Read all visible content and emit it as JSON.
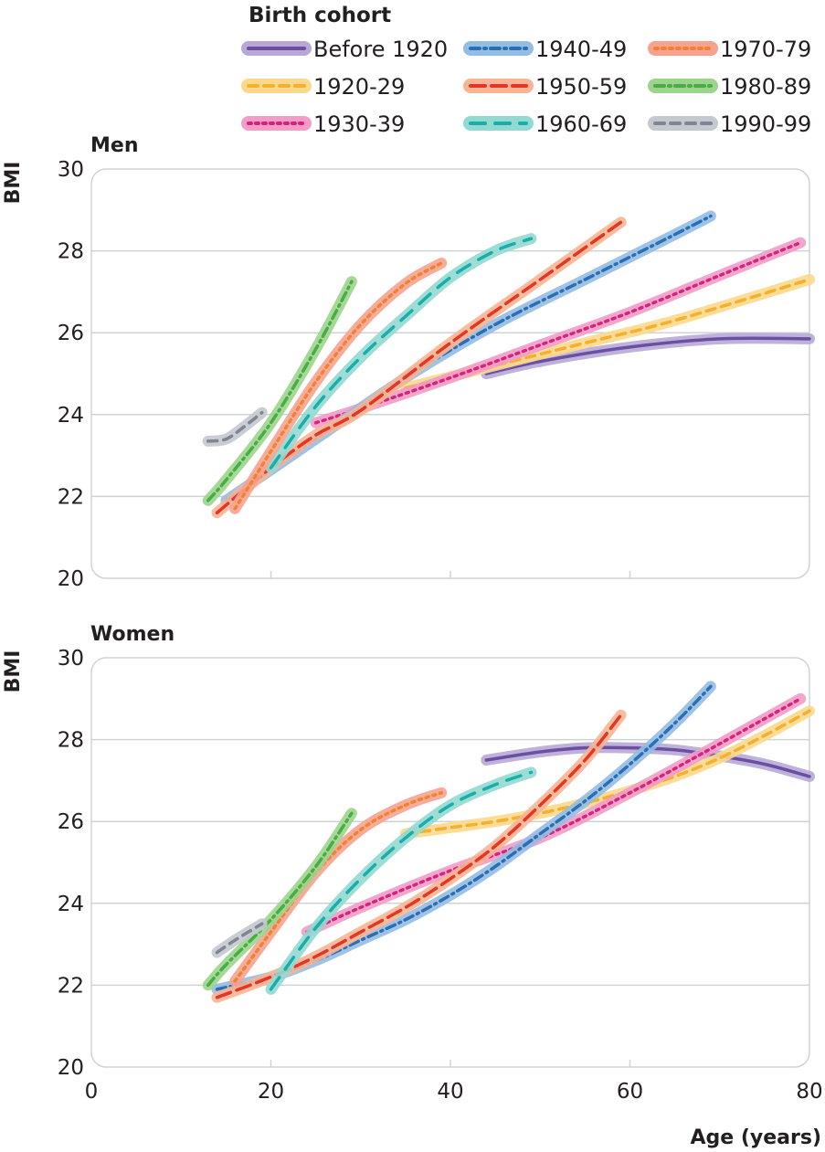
{
  "chart_data": {
    "type": "line",
    "legend_title": "Birth cohort",
    "legend_position": "top",
    "xlabel": "Age (years)",
    "ylabel": "BMI",
    "xlim": [
      0,
      80
    ],
    "ylim": [
      20,
      30
    ],
    "x_ticks": [
      "0",
      "20",
      "40",
      "60",
      "80"
    ],
    "y_ticks": [
      "20",
      "22",
      "24",
      "26",
      "28",
      "30"
    ],
    "grid": true,
    "series_styles": [
      {
        "name": "Before 1920",
        "color": "#6a4fa3",
        "band": "#b7a8d6",
        "dash": "solid"
      },
      {
        "name": "1920-29",
        "color": "#f6b02e",
        "band": "#fbd98c",
        "dash": "dash"
      },
      {
        "name": "1930-39",
        "color": "#d6247e",
        "band": "#f29cc7",
        "dash": "dot"
      },
      {
        "name": "1940-49",
        "color": "#2a6fb4",
        "band": "#93bde3",
        "dash": "dashdot"
      },
      {
        "name": "1950-59",
        "color": "#e53624",
        "band": "#f7b595",
        "dash": "longdash"
      },
      {
        "name": "1960-69",
        "color": "#1aaeaa",
        "band": "#92d9d2",
        "dash": "longdashgap"
      },
      {
        "name": "1970-79",
        "color": "#f2822f",
        "band": "#f6a28f",
        "dash": "dot"
      },
      {
        "name": "1980-89",
        "color": "#49ad46",
        "band": "#9cd48c",
        "dash": "dashdot"
      },
      {
        "name": "1990-99",
        "color": "#7e8791",
        "band": "#c4c8cf",
        "dash": "dash"
      }
    ],
    "panels": [
      {
        "title": "Men",
        "series": [
          {
            "name": "Before 1920",
            "x": [
              44,
              50,
              60,
              70,
              80
            ],
            "y": [
              25.0,
              25.3,
              25.65,
              25.85,
              25.85
            ]
          },
          {
            "name": "1920-29",
            "x": [
              35,
              45,
              55,
              65,
              80
            ],
            "y": [
              24.65,
              25.2,
              25.75,
              26.3,
              27.3
            ]
          },
          {
            "name": "1930-39",
            "x": [
              25,
              30,
              40,
              50,
              60,
              70,
              79
            ],
            "y": [
              23.8,
              24.15,
              24.9,
              25.7,
              26.5,
              27.4,
              28.2
            ]
          },
          {
            "name": "1940-49",
            "x": [
              15,
              25,
              35,
              45,
              55,
              65,
              69
            ],
            "y": [
              21.9,
              23.4,
              24.9,
              26.2,
              27.3,
              28.4,
              28.85
            ]
          },
          {
            "name": "1950-59",
            "x": [
              14,
              20,
              25,
              30,
              40,
              50,
              59
            ],
            "y": [
              21.6,
              22.7,
              23.5,
              24.1,
              25.75,
              27.3,
              28.7
            ]
          },
          {
            "name": "1960-69",
            "x": [
              20,
              25,
              30,
              35,
              40,
              45,
              49
            ],
            "y": [
              22.7,
              24.2,
              25.4,
              26.4,
              27.35,
              28.0,
              28.3
            ]
          },
          {
            "name": "1970-79",
            "x": [
              16,
              20,
              25,
              30,
              35,
              39
            ],
            "y": [
              21.7,
              23.1,
              24.8,
              26.2,
              27.2,
              27.7
            ]
          },
          {
            "name": "1980-89",
            "x": [
              13,
              15,
              20,
              25,
              29
            ],
            "y": [
              21.9,
              22.4,
              23.8,
              25.6,
              27.25
            ]
          },
          {
            "name": "1990-99",
            "x": [
              13,
              15,
              17,
              19
            ],
            "y": [
              23.35,
              23.4,
              23.7,
              24.05
            ]
          }
        ]
      },
      {
        "title": "Women",
        "series": [
          {
            "name": "Before 1920",
            "x": [
              44,
              50,
              55,
              60,
              65,
              70,
              75,
              80
            ],
            "y": [
              27.5,
              27.7,
              27.8,
              27.8,
              27.75,
              27.6,
              27.4,
              27.1
            ]
          },
          {
            "name": "1920-29",
            "x": [
              35,
              40,
              45,
              50,
              55,
              60,
              65,
              70,
              75,
              80
            ],
            "y": [
              25.7,
              25.85,
              26.0,
              26.2,
              26.45,
              26.75,
              27.1,
              27.55,
              28.1,
              28.7
            ]
          },
          {
            "name": "1930-39",
            "x": [
              24,
              30,
              40,
              50,
              60,
              70,
              79
            ],
            "y": [
              23.3,
              23.9,
              24.8,
              25.6,
              26.7,
              27.9,
              29.0
            ]
          },
          {
            "name": "1940-49",
            "x": [
              14,
              20,
              25,
              30,
              35,
              40,
              45,
              50,
              55,
              60,
              65,
              69
            ],
            "y": [
              21.9,
              22.2,
              22.6,
              23.1,
              23.6,
              24.2,
              24.9,
              25.7,
              26.5,
              27.4,
              28.4,
              29.3
            ]
          },
          {
            "name": "1950-59",
            "x": [
              14,
              20,
              25,
              30,
              35,
              40,
              45,
              50,
              55,
              59
            ],
            "y": [
              21.7,
              22.2,
              22.7,
              23.3,
              23.9,
              24.6,
              25.4,
              26.4,
              27.5,
              28.6
            ]
          },
          {
            "name": "1960-69",
            "x": [
              20,
              25,
              30,
              35,
              40,
              45,
              49
            ],
            "y": [
              21.9,
              23.4,
              24.6,
              25.6,
              26.4,
              26.9,
              27.2
            ]
          },
          {
            "name": "1970-79",
            "x": [
              16,
              20,
              25,
              30,
              35,
              39
            ],
            "y": [
              22.1,
              23.3,
              24.75,
              25.8,
              26.4,
              26.7
            ]
          },
          {
            "name": "1980-89",
            "x": [
              13,
              15,
              20,
              25,
              29
            ],
            "y": [
              22.0,
              22.5,
              23.6,
              24.9,
              26.2
            ]
          },
          {
            "name": "1990-99",
            "x": [
              14,
              16,
              19
            ],
            "y": [
              22.8,
              23.1,
              23.5
            ]
          }
        ]
      }
    ]
  }
}
